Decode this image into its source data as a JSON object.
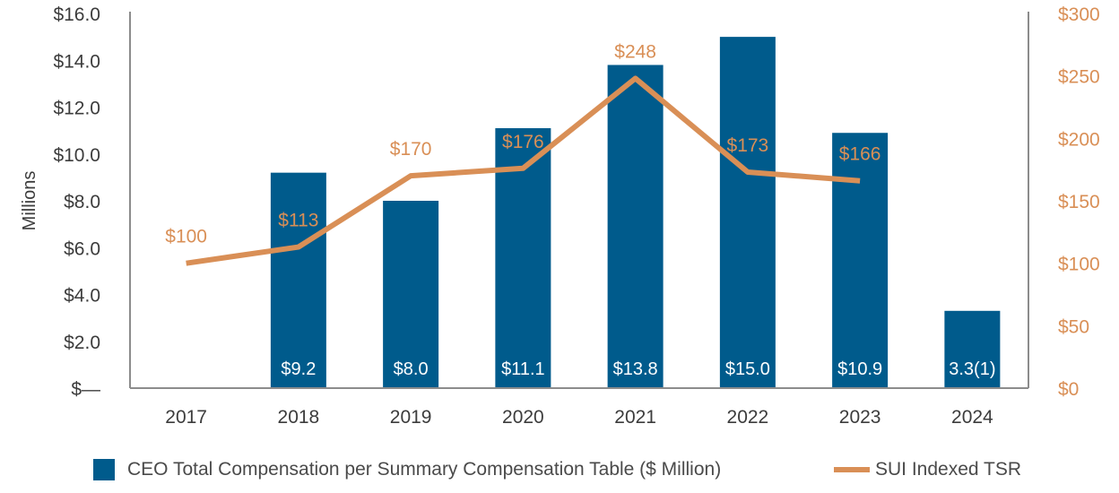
{
  "chart_data": {
    "type": "bar+line",
    "categories": [
      "2017",
      "2018",
      "2019",
      "2020",
      "2021",
      "2022",
      "2023",
      "2024"
    ],
    "ylabel": "Millions",
    "y_left": {
      "min": 0,
      "max": 16,
      "ticks": [
        0,
        2,
        4,
        6,
        8,
        10,
        12,
        14,
        16
      ],
      "tick_labels": [
        "$—",
        "$2.0",
        "$4.0",
        "$6.0",
        "$8.0",
        "$10.0",
        "$12.0",
        "$14.0",
        "$16.0"
      ]
    },
    "y_right": {
      "min": 0,
      "max": 300,
      "ticks": [
        0,
        50,
        100,
        150,
        200,
        250,
        300
      ],
      "tick_labels": [
        "$0",
        "$50",
        "$100",
        "$150",
        "$200",
        "$250",
        "$300"
      ]
    },
    "series": [
      {
        "name": "CEO Total Compensation per Summary Compensation Table ($ Million)",
        "type": "bar",
        "axis": "left",
        "color": "#005b8c",
        "values": [
          null,
          9.2,
          8.0,
          11.1,
          13.8,
          15.0,
          10.9,
          3.3
        ],
        "labels": [
          "",
          "$9.2",
          "$8.0",
          "$11.1",
          "$13.8",
          "$15.0",
          "$10.9",
          "3.3(1)"
        ]
      },
      {
        "name": "SUI Indexed TSR",
        "type": "line",
        "axis": "right",
        "color": "#d98f56",
        "values": [
          100,
          113,
          170,
          176,
          248,
          173,
          166,
          null
        ],
        "labels": [
          "$100",
          "$113",
          "$170",
          "$176",
          "$248",
          "$173",
          "$166",
          ""
        ]
      }
    ]
  },
  "colors": {
    "bar": "#005b8c",
    "line": "#d98f56",
    "axis": "#8c8c8c",
    "text": "#3c3c3c",
    "bar_label": "#ffffff"
  }
}
